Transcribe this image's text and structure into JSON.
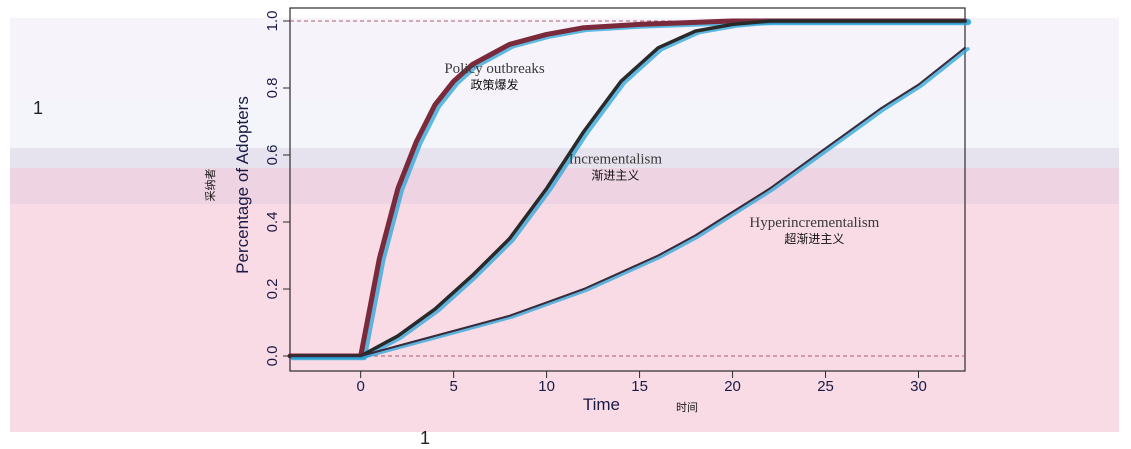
{
  "page_numbers": {
    "left": "1",
    "bottom": "1"
  },
  "chart_data": {
    "type": "line",
    "title": "",
    "xlabel": "Time",
    "xlabel_cn": "时间",
    "ylabel": "Percentage of Adopters",
    "ylabel_cn": "采纳者",
    "xlim": [
      -3.8,
      32.5
    ],
    "ylim": [
      0,
      1
    ],
    "x_ticks": [
      0,
      5,
      10,
      15,
      20,
      25,
      30
    ],
    "y_ticks": [
      0.0,
      0.2,
      0.4,
      0.6,
      0.8,
      1.0
    ],
    "x_tick_labels": [
      "0",
      "5",
      "10",
      "15",
      "20",
      "25",
      "30"
    ],
    "y_tick_labels": [
      "0.0",
      "0.2",
      "0.4",
      "0.6",
      "0.8",
      "1.0"
    ],
    "reference_lines": [
      0,
      1
    ],
    "grid": false,
    "series": [
      {
        "x": [
          -3.8,
          0,
          1,
          2,
          3,
          4,
          5,
          6,
          7,
          8,
          10,
          12,
          15,
          20,
          25,
          32.5
        ],
        "values": [
          0,
          0,
          0.29,
          0.5,
          0.64,
          0.75,
          0.82,
          0.87,
          0.9,
          0.93,
          0.96,
          0.98,
          0.99,
          1.0,
          1.0,
          1.0
        ]
      },
      {
        "x": [
          -3.8,
          0,
          2,
          4,
          6,
          8,
          10,
          12,
          14,
          16,
          18,
          20,
          22,
          25,
          32.5
        ],
        "values": [
          0,
          0,
          0.06,
          0.14,
          0.24,
          0.35,
          0.5,
          0.67,
          0.82,
          0.92,
          0.97,
          0.99,
          1.0,
          1.0,
          1.0
        ]
      },
      {
        "x": [
          -3.8,
          0,
          2,
          4,
          6,
          8,
          10,
          12,
          14,
          16,
          18,
          20,
          22,
          24,
          26,
          28,
          30,
          32.5
        ],
        "values": [
          0,
          0,
          0.03,
          0.06,
          0.09,
          0.12,
          0.16,
          0.2,
          0.25,
          0.3,
          0.36,
          0.43,
          0.5,
          0.58,
          0.66,
          0.74,
          0.81,
          0.92
        ]
      }
    ],
    "annotations": [
      {
        "text": "Policy outbreaks",
        "text_cn": "政策爆发",
        "x": 7.2,
        "y": 0.845
      },
      {
        "text": "Incrementalism",
        "text_cn": "渐进主义",
        "x": 13.7,
        "y": 0.575
      },
      {
        "text": "Hyperincrementalism",
        "text_cn": "超渐进主义",
        "x": 24.4,
        "y": 0.385
      }
    ]
  }
}
